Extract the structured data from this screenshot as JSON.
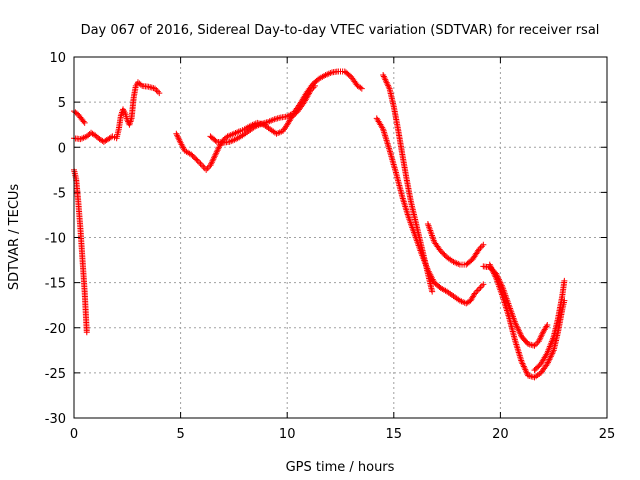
{
  "chart_data": {
    "type": "scatter",
    "title": "Day 067 of 2016, Sidereal Day-to-day VTEC variation (SDTVAR) for receiver rsal",
    "xlabel": "GPS time / hours",
    "ylabel": "SDTVAR / TECUs",
    "xlim": [
      0,
      25
    ],
    "ylim": [
      -30,
      10
    ],
    "xticks": [
      0,
      5,
      10,
      15,
      20,
      25
    ],
    "yticks": [
      -30,
      -25,
      -20,
      -15,
      -10,
      -5,
      0,
      5,
      10
    ],
    "grid": true,
    "marker": "+",
    "color": "#ff0000",
    "series": [
      {
        "points": [
          [
            0.0,
            4.0
          ],
          [
            0.2,
            3.6
          ],
          [
            0.4,
            3.0
          ],
          [
            0.5,
            2.7
          ]
        ]
      },
      {
        "points": [
          [
            0.0,
            1.0
          ],
          [
            0.3,
            0.9
          ],
          [
            0.6,
            1.2
          ],
          [
            0.8,
            1.6
          ],
          [
            1.0,
            1.3
          ],
          [
            1.2,
            0.9
          ],
          [
            1.4,
            0.6
          ],
          [
            1.6,
            0.9
          ],
          [
            1.8,
            1.2
          ],
          [
            2.0,
            1.0
          ],
          [
            2.1,
            2.0
          ],
          [
            2.2,
            3.5
          ],
          [
            2.3,
            4.2
          ],
          [
            2.4,
            3.8
          ],
          [
            2.5,
            3.0
          ],
          [
            2.6,
            2.5
          ],
          [
            2.7,
            3.2
          ],
          [
            2.8,
            5.5
          ],
          [
            2.9,
            6.8
          ],
          [
            3.0,
            7.2
          ],
          [
            3.2,
            6.8
          ],
          [
            3.5,
            6.7
          ],
          [
            3.8,
            6.5
          ],
          [
            4.0,
            6.0
          ]
        ]
      },
      {
        "points": [
          [
            0.0,
            -2.5
          ],
          [
            0.1,
            -3.5
          ],
          [
            0.2,
            -6.0
          ],
          [
            0.3,
            -9.0
          ],
          [
            0.4,
            -12.5
          ],
          [
            0.5,
            -16.0
          ],
          [
            0.6,
            -20.5
          ]
        ]
      },
      {
        "points": [
          [
            4.8,
            1.5
          ],
          [
            5.0,
            0.5
          ],
          [
            5.2,
            -0.4
          ],
          [
            5.5,
            -0.8
          ],
          [
            5.8,
            -1.5
          ],
          [
            6.0,
            -2.0
          ],
          [
            6.2,
            -2.5
          ],
          [
            6.4,
            -2.0
          ],
          [
            6.6,
            -1.0
          ],
          [
            6.8,
            0.0
          ],
          [
            7.0,
            0.8
          ],
          [
            7.2,
            1.2
          ],
          [
            7.5,
            1.5
          ],
          [
            7.8,
            1.8
          ],
          [
            8.0,
            2.0
          ],
          [
            8.3,
            2.4
          ],
          [
            8.6,
            2.7
          ],
          [
            8.9,
            2.5
          ],
          [
            9.2,
            2.0
          ],
          [
            9.5,
            1.5
          ],
          [
            9.8,
            1.8
          ],
          [
            10.0,
            2.5
          ],
          [
            10.2,
            3.3
          ],
          [
            10.5,
            4.0
          ],
          [
            10.8,
            5.0
          ],
          [
            11.1,
            6.3
          ],
          [
            11.3,
            6.8
          ]
        ]
      },
      {
        "points": [
          [
            6.4,
            1.2
          ],
          [
            6.7,
            0.6
          ],
          [
            7.0,
            0.5
          ],
          [
            7.3,
            0.6
          ],
          [
            7.6,
            0.9
          ],
          [
            7.9,
            1.3
          ],
          [
            8.2,
            1.8
          ],
          [
            8.5,
            2.3
          ],
          [
            8.8,
            2.6
          ],
          [
            9.1,
            2.8
          ],
          [
            9.4,
            3.1
          ],
          [
            9.7,
            3.3
          ],
          [
            10.0,
            3.4
          ],
          [
            10.3,
            3.8
          ],
          [
            10.6,
            4.8
          ],
          [
            10.9,
            6.0
          ],
          [
            11.2,
            7.0
          ],
          [
            11.5,
            7.6
          ],
          [
            11.8,
            8.0
          ],
          [
            12.1,
            8.3
          ],
          [
            12.4,
            8.4
          ],
          [
            12.7,
            8.4
          ],
          [
            13.0,
            7.8
          ],
          [
            13.3,
            6.8
          ],
          [
            13.5,
            6.5
          ]
        ]
      },
      {
        "points": [
          [
            14.2,
            3.2
          ],
          [
            14.5,
            2.0
          ],
          [
            14.8,
            -0.3
          ],
          [
            15.1,
            -2.8
          ],
          [
            15.4,
            -5.5
          ],
          [
            15.7,
            -7.8
          ],
          [
            16.0,
            -9.8
          ],
          [
            16.3,
            -11.8
          ],
          [
            16.6,
            -13.6
          ],
          [
            16.9,
            -15.0
          ],
          [
            17.2,
            -15.6
          ],
          [
            17.5,
            -16.0
          ],
          [
            17.8,
            -16.5
          ],
          [
            18.1,
            -17.0
          ],
          [
            18.4,
            -17.3
          ],
          [
            18.6,
            -17.0
          ],
          [
            18.8,
            -16.2
          ],
          [
            19.0,
            -15.7
          ],
          [
            19.2,
            -15.2
          ]
        ]
      },
      {
        "points": [
          [
            14.5,
            8.0
          ],
          [
            14.8,
            6.5
          ],
          [
            15.0,
            4.5
          ],
          [
            15.2,
            2.0
          ],
          [
            15.4,
            -0.8
          ],
          [
            15.6,
            -3.5
          ],
          [
            15.8,
            -6.0
          ],
          [
            16.0,
            -8.0
          ],
          [
            16.2,
            -10.0
          ],
          [
            16.4,
            -12.0
          ],
          [
            16.6,
            -14.0
          ],
          [
            16.8,
            -16.0
          ]
        ]
      },
      {
        "points": [
          [
            16.6,
            -8.5
          ],
          [
            16.9,
            -10.5
          ],
          [
            17.2,
            -11.5
          ],
          [
            17.5,
            -12.2
          ],
          [
            17.8,
            -12.7
          ],
          [
            18.1,
            -13.0
          ],
          [
            18.4,
            -13.0
          ],
          [
            18.7,
            -12.4
          ],
          [
            19.0,
            -11.3
          ],
          [
            19.2,
            -10.8
          ]
        ]
      },
      {
        "points": [
          [
            19.2,
            -13.2
          ],
          [
            19.5,
            -13.3
          ],
          [
            19.8,
            -14.0
          ],
          [
            20.1,
            -15.5
          ],
          [
            20.4,
            -17.5
          ],
          [
            20.7,
            -19.5
          ],
          [
            21.0,
            -21.0
          ],
          [
            21.3,
            -21.8
          ],
          [
            21.6,
            -22.0
          ],
          [
            21.8,
            -21.5
          ],
          [
            22.0,
            -20.5
          ],
          [
            22.2,
            -19.7
          ]
        ]
      },
      {
        "points": [
          [
            19.5,
            -13.0
          ],
          [
            19.8,
            -14.5
          ],
          [
            20.1,
            -16.5
          ],
          [
            20.4,
            -18.8
          ],
          [
            20.7,
            -21.5
          ],
          [
            21.0,
            -23.8
          ],
          [
            21.3,
            -25.3
          ],
          [
            21.6,
            -25.5
          ],
          [
            21.9,
            -25.0
          ],
          [
            22.2,
            -24.0
          ],
          [
            22.5,
            -22.5
          ],
          [
            22.7,
            -20.5
          ],
          [
            22.9,
            -18.0
          ],
          [
            23.0,
            -17.0
          ]
        ]
      },
      {
        "points": [
          [
            21.6,
            -24.7
          ],
          [
            21.9,
            -24.0
          ],
          [
            22.2,
            -22.8
          ],
          [
            22.5,
            -21.0
          ],
          [
            22.7,
            -19.0
          ],
          [
            22.9,
            -16.5
          ],
          [
            23.0,
            -14.8
          ]
        ]
      }
    ]
  }
}
